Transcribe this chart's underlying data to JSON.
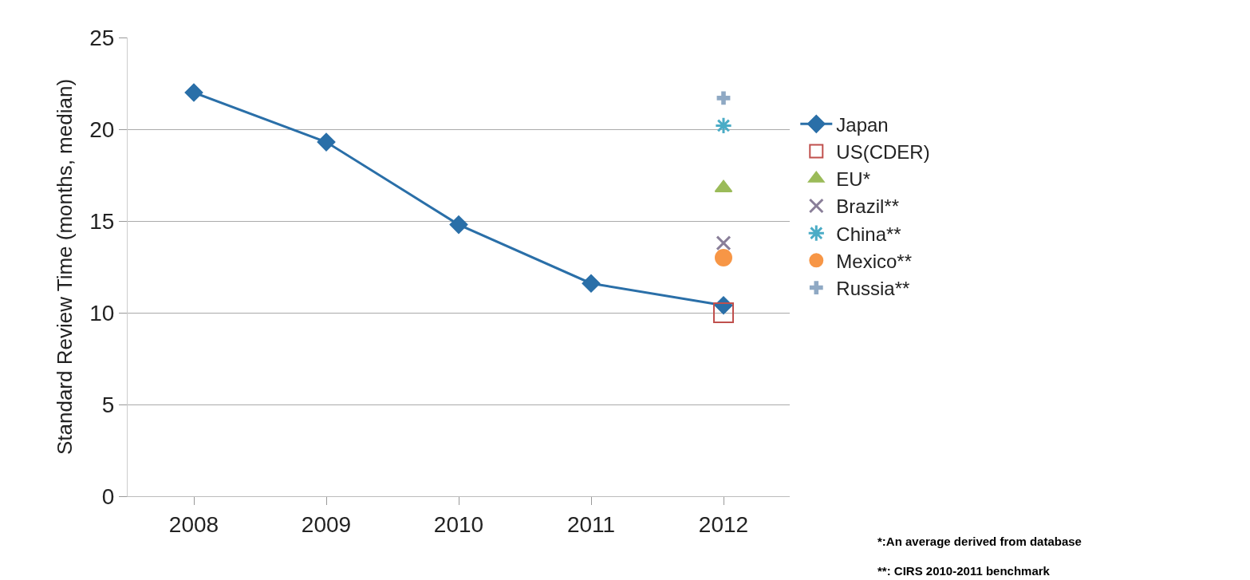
{
  "chart_data": {
    "type": "line",
    "ylabel": "Standard Review Time (months, median)",
    "categories": [
      "2008",
      "2009",
      "2010",
      "2011",
      "2012"
    ],
    "ylim": [
      0,
      25
    ],
    "yticks": [
      0,
      5,
      10,
      15,
      20,
      25
    ],
    "grid": "y",
    "legend": "right",
    "series": [
      {
        "name": "Japan",
        "marker": "diamond",
        "color": "#2a6fa8",
        "values": [
          22.0,
          19.3,
          14.8,
          11.6,
          10.4
        ]
      },
      {
        "name": "US(CDER)",
        "type": "scatter",
        "marker": "square",
        "color": "#c0504d",
        "values": [
          null,
          null,
          null,
          null,
          10.0
        ]
      },
      {
        "name": "EU*",
        "type": "scatter",
        "marker": "triangle",
        "color": "#9bbb59",
        "values": [
          null,
          null,
          null,
          null,
          16.8
        ]
      },
      {
        "name": "Brazil**",
        "type": "scatter",
        "marker": "cross",
        "color": "#8a7f99",
        "values": [
          null,
          null,
          null,
          null,
          13.8
        ]
      },
      {
        "name": "China**",
        "type": "scatter",
        "marker": "cross",
        "color": "#4bacc6",
        "values": [
          null,
          null,
          null,
          null,
          20.2
        ]
      },
      {
        "name": "Mexico**",
        "type": "scatter",
        "marker": "circle",
        "color": "#f79646",
        "values": [
          null,
          null,
          null,
          null,
          13.0
        ]
      },
      {
        "name": "Russia**",
        "type": "scatter",
        "marker": "cross",
        "color": "#8fa9c4",
        "values": [
          null,
          null,
          null,
          null,
          21.7
        ]
      }
    ],
    "annotations": [
      "*:An average derived from database",
      "**: CIRS 2010-2011 benchmark"
    ]
  }
}
